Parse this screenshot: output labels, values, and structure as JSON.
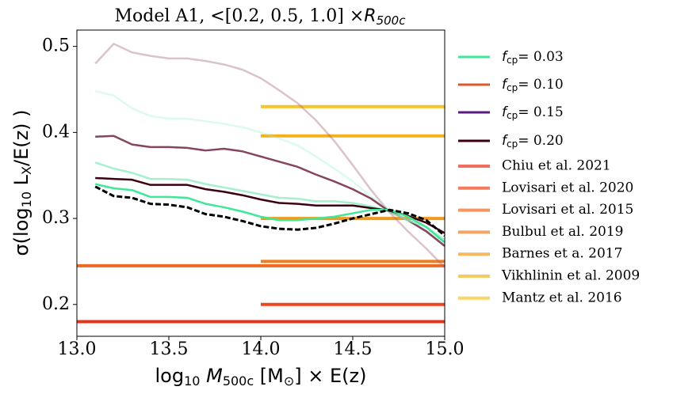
{
  "chart_data": {
    "type": "line",
    "title": [
      "Model A1, <[0.2, 0.5, 1.0] ×",
      "R",
      "500c"
    ],
    "xlabel": [
      "log",
      "10",
      " M",
      "500c",
      " [M",
      "⊙",
      "] × E(z)"
    ],
    "ylabel": [
      "σ(log",
      "10",
      " L",
      "X",
      "/E(z) )"
    ],
    "xlim": [
      13.0,
      15.0
    ],
    "ylim": [
      0.163,
      0.519
    ],
    "xticks": [
      {
        "value": 13,
        "label": "13.0"
      },
      {
        "value": 13.5,
        "label": "13.5"
      },
      {
        "value": 14,
        "label": "14.0"
      },
      {
        "value": 14.5,
        "label": "14.5"
      },
      {
        "value": 15,
        "label": "15.0"
      }
    ],
    "yticks": [
      0.2,
      0.3,
      0.4,
      0.5
    ],
    "x": [
      13.1,
      13.2,
      13.3,
      13.4,
      13.5,
      13.6,
      13.7,
      13.8,
      13.9,
      14.0,
      14.1,
      14.2,
      14.3,
      14.4,
      14.5,
      14.6,
      14.7,
      14.8,
      14.9,
      15.0
    ],
    "series": [
      {
        "color": "#a8667e",
        "alpha": 0.4,
        "values": [
          0.48,
          0.503,
          0.493,
          0.489,
          0.486,
          0.486,
          0.483,
          0.479,
          0.473,
          0.463,
          0.449,
          0.434,
          0.414,
          0.39,
          0.362,
          0.333,
          0.307,
          0.285,
          0.265,
          0.243
        ]
      },
      {
        "color": "#9af0cc",
        "alpha": 0.35,
        "values": [
          0.448,
          0.443,
          0.428,
          0.419,
          0.416,
          0.416,
          0.413,
          0.41,
          0.406,
          0.4,
          0.393,
          0.385,
          0.372,
          0.358,
          0.343,
          0.325,
          0.31,
          0.297,
          0.285,
          0.272
        ]
      },
      {
        "color": "#7a3050",
        "alpha": 0.9,
        "values": [
          0.395,
          0.396,
          0.386,
          0.383,
          0.383,
          0.382,
          0.379,
          0.381,
          0.378,
          0.372,
          0.366,
          0.36,
          0.351,
          0.343,
          0.334,
          0.323,
          0.308,
          0.298,
          0.285,
          0.268
        ]
      },
      {
        "color": "#8eecc0",
        "alpha": 0.8,
        "values": [
          0.365,
          0.358,
          0.353,
          0.346,
          0.346,
          0.345,
          0.34,
          0.336,
          0.332,
          0.328,
          0.324,
          0.323,
          0.32,
          0.32,
          0.318,
          0.314,
          0.308,
          0.298,
          0.29,
          0.275
        ]
      },
      {
        "color": "#3b0010",
        "alpha": 1,
        "values": [
          0.347,
          0.346,
          0.345,
          0.339,
          0.339,
          0.339,
          0.334,
          0.331,
          0.327,
          0.322,
          0.318,
          0.317,
          0.315,
          0.315,
          0.315,
          0.312,
          0.309,
          0.303,
          0.295,
          0.283
        ]
      },
      {
        "color": "#3fe896",
        "alpha": 1,
        "values": [
          0.34,
          0.335,
          0.333,
          0.325,
          0.325,
          0.324,
          0.317,
          0.313,
          0.308,
          0.302,
          0.298,
          0.298,
          0.3,
          0.302,
          0.306,
          0.31,
          0.31,
          0.302,
          0.29,
          0.272
        ]
      },
      {
        "color": "#000000",
        "alpha": 1,
        "dash": true,
        "values": [
          0.337,
          0.326,
          0.324,
          0.317,
          0.316,
          0.313,
          0.305,
          0.302,
          0.297,
          0.291,
          0.288,
          0.287,
          0.289,
          0.294,
          0.3,
          0.305,
          0.31,
          0.306,
          0.298,
          0.28
        ]
      }
    ],
    "line_legend": [
      {
        "name": [
          "f",
          "cp",
          "= 0.03"
        ],
        "color": "#3fe896"
      },
      {
        "name": [
          "f",
          "cp",
          "= 0.10"
        ],
        "color": "#dd5a28"
      },
      {
        "name": [
          "f",
          "cp",
          "= 0.15"
        ],
        "color": "#5a1a80"
      },
      {
        "name": [
          "f",
          "cp",
          "= 0.20"
        ],
        "color": "#3b0010"
      }
    ],
    "reference_lines": [
      {
        "name": "Chiu et al. 2021",
        "color": "#e8301a",
        "value": 0.18,
        "xrange": [
          13.0,
          15.0
        ]
      },
      {
        "name": "Lovisari et al. 2020",
        "color": "#f0441a",
        "value": 0.2,
        "xrange": [
          14.0,
          15.0
        ]
      },
      {
        "name": "Lovisari et al. 2015",
        "color": "#ee6a1e",
        "value": 0.245,
        "xrange": [
          13.0,
          15.0
        ]
      },
      {
        "name": "Bulbul et al. 2019",
        "color": "#ef7d22",
        "value": 0.25,
        "xrange": [
          14.0,
          15.0
        ]
      },
      {
        "name": "Barnes et a. 2017",
        "color": "#f29a1e",
        "value": 0.3,
        "xrange": [
          14.0,
          15.0
        ]
      },
      {
        "name": "Vikhlinin et al. 2009",
        "color": "#f5b01e",
        "value": 0.396,
        "xrange": [
          14.0,
          15.0
        ]
      },
      {
        "name": "Mantz et al. 2016",
        "color": "#f8c424",
        "value": 0.43,
        "xrange": [
          14.0,
          15.0
        ]
      }
    ]
  }
}
